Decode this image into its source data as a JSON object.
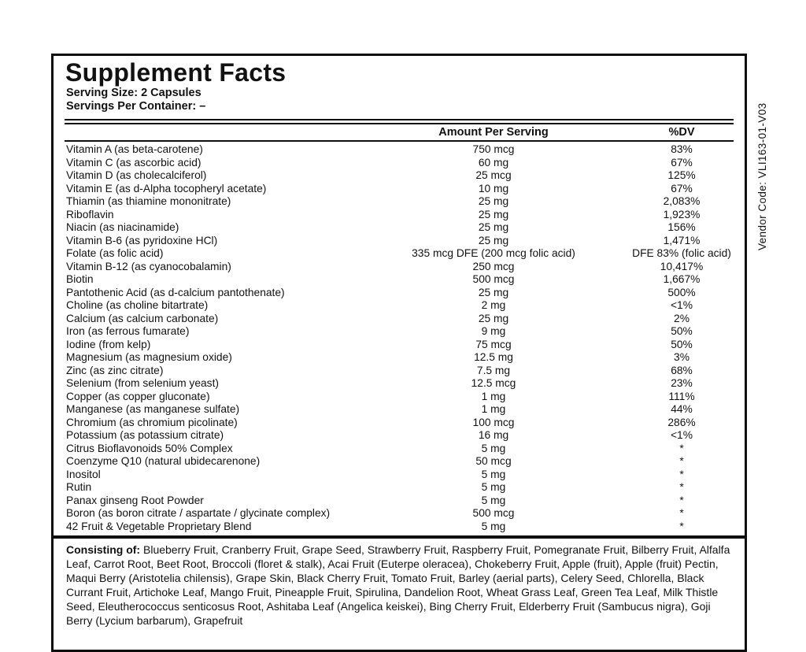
{
  "vendor_code": "Vendor Code: VLI163-01-V03",
  "panel": {
    "title": "Supplement Facts",
    "serving_size": "Serving Size: 2 Capsules",
    "servings_per_container": "Servings Per Container: –"
  },
  "columns": {
    "amount": "Amount Per Serving",
    "dv": "%DV"
  },
  "rows": [
    {
      "name": "Vitamin A (as beta-carotene)",
      "amount": "750 mcg",
      "dv": "83%"
    },
    {
      "name": "Vitamin C (as ascorbic acid)",
      "amount": "60 mg",
      "dv": "67%"
    },
    {
      "name": "Vitamin D (as cholecalciferol)",
      "amount": "25 mcg",
      "dv": "125%"
    },
    {
      "name": "Vitamin E (as d-Alpha tocopheryl acetate)",
      "amount": "10 mg",
      "dv": "67%"
    },
    {
      "name": "Thiamin (as thiamine mononitrate)",
      "amount": "25 mg",
      "dv": "2,083%"
    },
    {
      "name": "Riboflavin",
      "amount": "25 mg",
      "dv": "1,923%"
    },
    {
      "name": "Niacin (as niacinamide)",
      "amount": "25 mg",
      "dv": "156%"
    },
    {
      "name": "Vitamin B-6 (as pyridoxine HCl)",
      "amount": "25 mg",
      "dv": "1,471%"
    },
    {
      "name": "Folate (as folic acid)",
      "amount": "335 mcg DFE (200 mcg folic acid)",
      "dv": "DFE 83% (folic acid)"
    },
    {
      "name": "Vitamin B-12 (as cyanocobalamin)",
      "amount": "250 mcg",
      "dv": "10,417%"
    },
    {
      "name": "Biotin",
      "amount": "500 mcg",
      "dv": "1,667%"
    },
    {
      "name": "Pantothenic Acid (as d-calcium pantothenate)",
      "amount": "25 mg",
      "dv": "500%"
    },
    {
      "name": "Choline (as choline bitartrate)",
      "amount": "2 mg",
      "dv": "<1%"
    },
    {
      "name": "Calcium (as calcium carbonate)",
      "amount": "25 mg",
      "dv": "2%"
    },
    {
      "name": "Iron (as ferrous fumarate)",
      "amount": "9 mg",
      "dv": "50%"
    },
    {
      "name": "Iodine (from kelp)",
      "amount": "75 mcg",
      "dv": "50%"
    },
    {
      "name": "Magnesium (as magnesium oxide)",
      "amount": "12.5 mg",
      "dv": "3%"
    },
    {
      "name": "Zinc (as zinc citrate)",
      "amount": "7.5 mg",
      "dv": "68%"
    },
    {
      "name": "Selenium (from selenium yeast)",
      "amount": "12.5 mcg",
      "dv": "23%"
    },
    {
      "name": "Copper (as copper gluconate)",
      "amount": "1 mg",
      "dv": "111%"
    },
    {
      "name": "Manganese (as manganese sulfate)",
      "amount": "1 mg",
      "dv": "44%"
    },
    {
      "name": "Chromium (as chromium picolinate)",
      "amount": "100 mcg",
      "dv": "286%"
    },
    {
      "name": "Potassium (as potassium citrate)",
      "amount": "16 mg",
      "dv": "<1%"
    },
    {
      "name": "Citrus Bioflavonoids 50% Complex",
      "amount": "5 mg",
      "dv": "*"
    },
    {
      "name": "Coenzyme Q10 (natural ubidecarenone)",
      "amount": "50 mcg",
      "dv": "*"
    },
    {
      "name": "Inositol",
      "amount": "5 mg",
      "dv": "*"
    },
    {
      "name": "Rutin",
      "amount": "5 mg",
      "dv": "*"
    },
    {
      "name": "Panax ginseng Root Powder",
      "amount": "5 mg",
      "dv": "*"
    },
    {
      "name": "Boron (as boron citrate / aspartate / glycinate complex)",
      "amount": "500 mcg",
      "dv": "*"
    },
    {
      "name": "42 Fruit & Vegetable Proprietary Blend",
      "amount": "5 mg",
      "dv": "*"
    }
  ],
  "footnote": {
    "label": "Consisting of:",
    "text": " Blueberry Fruit, Cranberry Fruit, Grape Seed, Strawberry Fruit, Raspberry Fruit, Pomegranate Fruit, Bilberry Fruit, Alfalfa Leaf, Carrot Root, Beet Root, Broccoli (floret & stalk), Acai Fruit (Euterpe oleracea), Chokeberry Fruit, Apple (fruit), Apple (fruit) Pectin, Maqui Berry (Aristotelia chilensis), Grape Skin, Black Cherry Fruit, Tomato Fruit, Barley (aerial parts), Celery Seed, Chlorella, Black Currant Fruit, Artichoke Leaf, Mango Fruit, Pineapple Fruit, Spirulina, Dandelion Root, Wheat Grass Leaf, Green Tea Leaf, Milk Thistle Seed, Eleutherococcus senticosus Root, Ashitaba Leaf (Angelica keiskei), Bing Cherry Fruit, Elderberry Fruit (Sambucus nigra), Goji Berry (Lycium barbarum), Grapefruit"
  },
  "colors": {
    "text": "#121212",
    "border": "#0e0e0e",
    "background": "#ffffff"
  }
}
